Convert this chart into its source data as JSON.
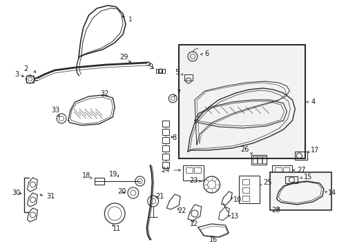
{
  "bg_color": "#ffffff",
  "line_color": "#2a2a2a",
  "text_color": "#1a1a1a",
  "figsize": [
    4.89,
    3.6
  ],
  "dpi": 100,
  "xlim": [
    0,
    489
  ],
  "ylim": [
    0,
    360
  ]
}
